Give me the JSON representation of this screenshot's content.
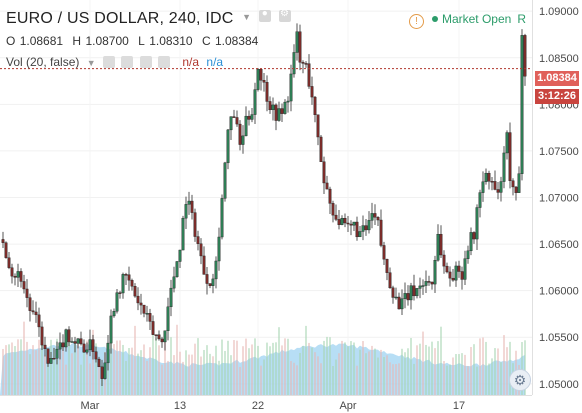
{
  "header": {
    "symbol_title": "EURO / US DOLLAR, 240, IDC",
    "ohlc": {
      "o_label": "O",
      "o_value": "1.08681",
      "h_label": "H",
      "h_value": "1.08700",
      "l_label": "L",
      "l_value": "1.08310",
      "c_label": "C",
      "c_value": "1.08384"
    },
    "volume_study": "Vol (20, false)",
    "na_1": "n/a",
    "na_2": "n/a"
  },
  "market_status": {
    "warning_symbol": "!",
    "label": "Market Open",
    "mode": "R"
  },
  "price_axis": {
    "ticks": [
      "1.09000",
      "1.08500",
      "1.08000",
      "1.07500",
      "1.07000",
      "1.06500",
      "1.06000",
      "1.05500",
      "1.05000"
    ],
    "last_price": "1.08384",
    "countdown": "3:12:26"
  },
  "time_axis": {
    "ticks": [
      "Mar",
      "13",
      "22",
      "Apr",
      "17"
    ]
  },
  "icons": {
    "settings": "gear-icon",
    "warning": "warning-icon",
    "interval": "chevron-down-icon"
  },
  "colors": {
    "up_body": "#2f7d55",
    "down_body": "#7a2c2a",
    "wick": "#555555",
    "last_price_line": "#b0362d",
    "price_tag": "#e0605a",
    "volume_area": "#9fd3f2",
    "volume_up": "#a7d6b3",
    "volume_down": "#e8b8b5",
    "market_open": "#2c9c6a"
  },
  "chart_data": {
    "type": "candlestick",
    "title": "EURO / US DOLLAR, 240, IDC",
    "interval": "240",
    "y_range": [
      1.0488,
      1.0912
    ],
    "x_tick_labels": [
      "Mar",
      "13",
      "22",
      "Apr",
      "17"
    ],
    "last_price": 1.08384,
    "close_path": [
      [
        0,
        1.0655
      ],
      [
        3,
        1.062
      ],
      [
        6,
        1.0615
      ],
      [
        9,
        1.058
      ],
      [
        12,
        1.056
      ],
      [
        15,
        1.052
      ],
      [
        18,
        1.053
      ],
      [
        21,
        1.0555
      ],
      [
        24,
        1.0545
      ],
      [
        27,
        1.054
      ],
      [
        30,
        1.054
      ],
      [
        33,
        1.051
      ],
      [
        36,
        1.057
      ],
      [
        38,
        1.06
      ],
      [
        41,
        1.0615
      ],
      [
        44,
        1.0595
      ],
      [
        47,
        1.0575
      ],
      [
        50,
        1.0555
      ],
      [
        53,
        1.0545
      ],
      [
        56,
        1.06
      ],
      [
        59,
        1.065
      ],
      [
        61,
        1.07
      ],
      [
        63,
        1.068
      ],
      [
        65,
        1.065
      ],
      [
        67,
        1.062
      ],
      [
        69,
        1.061
      ],
      [
        71,
        1.063
      ],
      [
        73,
        1.07
      ],
      [
        75,
        1.077
      ],
      [
        77,
        1.079
      ],
      [
        79,
        1.0755
      ],
      [
        81,
        1.078
      ],
      [
        83,
        1.0795
      ],
      [
        85,
        1.084
      ],
      [
        87,
        1.082
      ],
      [
        89,
        1.08
      ],
      [
        91,
        1.079
      ],
      [
        93,
        1.079
      ],
      [
        95,
        1.081
      ],
      [
        97,
        1.085
      ],
      [
        98,
        1.0875
      ],
      [
        99,
        1.0845
      ],
      [
        101,
        1.084
      ],
      [
        103,
        1.081
      ],
      [
        105,
        1.076
      ],
      [
        107,
        1.072
      ],
      [
        109,
        1.0695
      ],
      [
        111,
        1.068
      ],
      [
        113,
        1.067
      ],
      [
        115,
        1.0665
      ],
      [
        117,
        1.067
      ],
      [
        119,
        1.066
      ],
      [
        121,
        1.0665
      ],
      [
        123,
        1.068
      ],
      [
        125,
        1.067
      ],
      [
        127,
        1.063
      ],
      [
        129,
        1.061
      ],
      [
        131,
        1.059
      ],
      [
        133,
        1.0585
      ],
      [
        135,
        1.0595
      ],
      [
        137,
        1.06
      ],
      [
        139,
        1.0605
      ],
      [
        141,
        1.061
      ],
      [
        143,
        1.061
      ],
      [
        145,
        1.066
      ],
      [
        147,
        1.0625
      ],
      [
        149,
        1.0615
      ],
      [
        151,
        1.062
      ],
      [
        153,
        1.062
      ],
      [
        155,
        1.065
      ],
      [
        157,
        1.066
      ],
      [
        159,
        1.071
      ],
      [
        161,
        1.072
      ],
      [
        163,
        1.0715
      ],
      [
        165,
        1.07
      ],
      [
        167,
        1.074
      ],
      [
        168,
        1.0765
      ],
      [
        169,
        1.072
      ],
      [
        170,
        1.0705
      ],
      [
        171,
        1.07
      ],
      [
        172,
        1.072
      ],
      [
        173,
        1.088
      ],
      [
        174,
        1.0838
      ]
    ]
  }
}
